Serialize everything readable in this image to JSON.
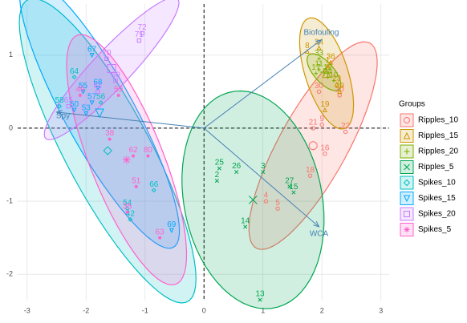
{
  "chart_data": {
    "type": "scatter",
    "xlim": [
      -3.16,
      3.14
    ],
    "ylim": [
      -2.36,
      1.7
    ],
    "xticks": [
      -3,
      -2,
      -1,
      0,
      1,
      2,
      3
    ],
    "yticks": [
      -2,
      -1,
      0,
      1
    ],
    "grid": true,
    "legend_title": "Groups",
    "legend_position": "right",
    "series": [
      {
        "name": "Ripples_10",
        "color": "#F8766D",
        "labels": [
          "16",
          "18",
          "4",
          "5",
          "21",
          "9",
          "20",
          "30",
          "22"
        ],
        "x": [
          2.05,
          1.8,
          1.05,
          1.25,
          1.85,
          2.0,
          2.3,
          1.95,
          2.4
        ],
        "values": [
          -0.35,
          -0.65,
          -1.0,
          -1.1,
          0.0,
          0.05,
          0.45,
          0.5,
          -0.05
        ]
      },
      {
        "name": "Ripples_15",
        "color": "#CD9600",
        "labels": [
          "8",
          "34",
          "19",
          "23",
          "1",
          "36",
          "29"
        ],
        "x": [
          1.75,
          1.95,
          2.05,
          2.25,
          2.1,
          2.15,
          2.3
        ],
        "values": [
          1.05,
          1.1,
          0.25,
          0.6,
          0.85,
          0.9,
          0.5
        ]
      },
      {
        "name": "Ripples_20",
        "color": "#7CAE00",
        "labels": [
          "33",
          "11",
          "12",
          "10",
          "24",
          "17"
        ],
        "x": [
          1.95,
          1.95,
          2.1,
          2.2,
          2.1,
          1.9
        ],
        "values": [
          0.95,
          0.8,
          0.75,
          0.65,
          0.7,
          0.75
        ]
      },
      {
        "name": "Ripples_5",
        "color": "#00A651",
        "labels": [
          "25",
          "2",
          "26",
          "3",
          "14",
          "13",
          "27",
          "15"
        ],
        "x": [
          0.26,
          0.22,
          0.55,
          1.0,
          0.7,
          0.95,
          1.45,
          1.52
        ],
        "values": [
          -0.55,
          -0.72,
          -0.6,
          -0.6,
          -1.35,
          -2.35,
          -0.8,
          -0.88
        ]
      },
      {
        "name": "Spikes_10",
        "color": "#00BFC4",
        "labels": [
          "64",
          "58",
          "54",
          "42",
          "66",
          "56"
        ],
        "x": [
          -2.2,
          -2.45,
          -1.3,
          -1.25,
          -0.85,
          -1.75
        ],
        "values": [
          0.7,
          0.3,
          -1.1,
          -1.25,
          -0.85,
          0.35
        ]
      },
      {
        "name": "Spikes_15",
        "color": "#00A9FF",
        "labels": [
          "67",
          "55",
          "68",
          "69",
          "57",
          "50",
          "53"
        ],
        "x": [
          -1.9,
          -2.05,
          -1.8,
          -0.55,
          -1.9,
          -2.2,
          -2.0
        ],
        "values": [
          1.0,
          0.5,
          0.55,
          -1.4,
          0.35,
          0.25,
          0.2
        ]
      },
      {
        "name": "Spikes_20",
        "color": "#C77CFF",
        "labels": [
          "72",
          "71",
          "70",
          "60",
          "61",
          "65"
        ],
        "x": [
          -1.05,
          -1.1,
          -1.65,
          -1.5,
          -1.8,
          -2.3
        ],
        "values": [
          1.3,
          1.2,
          0.95,
          0.65,
          0.5,
          0.3
        ]
      },
      {
        "name": "Spikes_5",
        "color": "#FF61CC",
        "labels": [
          "38",
          "62",
          "80",
          "51",
          "35",
          "63",
          "49",
          "59"
        ],
        "x": [
          -1.6,
          -1.2,
          -0.95,
          -1.15,
          -1.3,
          -0.75,
          -2.1,
          -1.45
        ],
        "values": [
          -0.15,
          -0.38,
          -0.38,
          -0.8,
          -1.15,
          -1.5,
          0.45,
          0.45
        ]
      }
    ],
    "vectors": [
      {
        "name": "Biofouling",
        "x": 1.99,
        "y": 1.21
      },
      {
        "name": "WCA",
        "x": 1.95,
        "y": -1.35
      },
      {
        "name": "Spy",
        "x": -2.5,
        "y": 0.22
      }
    ]
  }
}
